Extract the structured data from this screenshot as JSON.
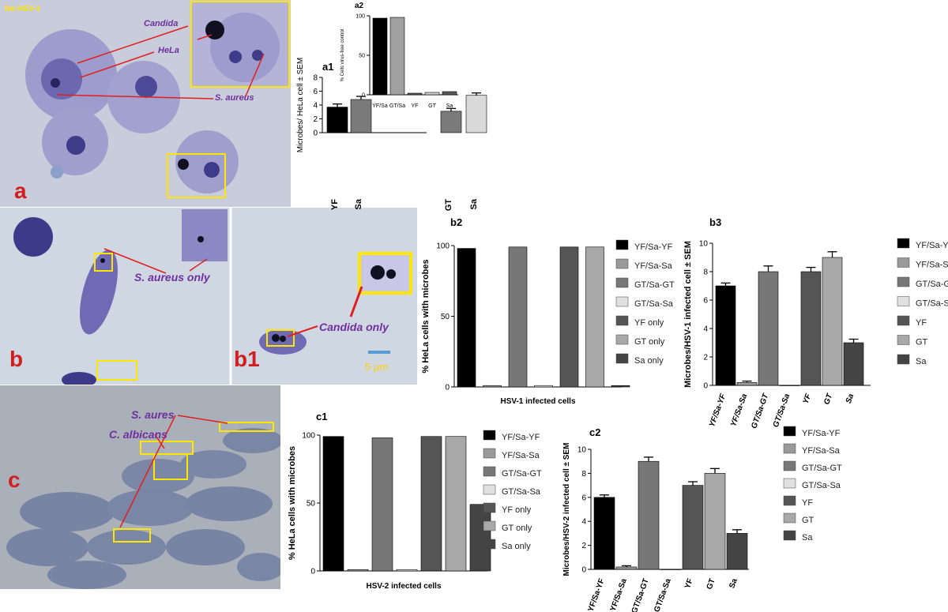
{
  "panel_labels": {
    "a": "a",
    "b": "b",
    "b1": "b1",
    "c": "c"
  },
  "micrographs": {
    "a": {
      "corner_text": "No HSV-1",
      "candida": "Candida",
      "hela": "HeLa",
      "s_aureus": "S. aureus"
    },
    "b": {
      "s_aureus_only": "S. aureus only"
    },
    "b1": {
      "candida_only": "Candida only",
      "scale": "5 μm"
    },
    "c": {
      "s_aures": "S. aures",
      "c_albicans": "C. albicans"
    }
  },
  "colors": {
    "purple_label": "#7030a0",
    "red_label": "#d11f1f",
    "yellow_box": "#ffe600",
    "arrow_red": "#e02020",
    "cell_blue": "#6e6bb4",
    "bg_a": "#c9ccdb",
    "bg_b": "#cfd7e3",
    "bg_c": "#a9b0b9"
  },
  "chart_data": [
    {
      "id": "a1",
      "type": "bar",
      "title": "a1",
      "ylabel": "Microbes/ HeLa cell ± SEM",
      "ylim": [
        0,
        8
      ],
      "yticks": [
        "0",
        "2",
        "4",
        "6",
        "8"
      ],
      "categories": [
        "YF",
        "Sa",
        "GT",
        "Sa"
      ],
      "values": [
        3.7,
        4.8,
        3.1,
        5.4
      ],
      "errors": [
        0.45,
        0.45,
        0.4,
        0.35
      ],
      "colors": [
        "#000000",
        "#7a7a7a",
        "#7a7a7a",
        "#d9d9d9"
      ]
    },
    {
      "id": "a2",
      "type": "bar",
      "title": "a2",
      "ylabel": "% Cells virus-free control",
      "ylim": [
        0,
        100
      ],
      "yticks": [
        "0",
        "50",
        "100"
      ],
      "categories": [
        "YF/Sa",
        "GT/Sa",
        "YF",
        "GT",
        "Sa"
      ],
      "values": [
        97,
        98,
        2,
        3,
        4
      ],
      "colors": [
        "#000000",
        "#a0a0a0",
        "#5a5a5a",
        "#d0d0d0",
        "#5a5a5a"
      ]
    },
    {
      "id": "b2",
      "type": "bar",
      "title": "b2",
      "ylabel": "% HeLa cells with microbes",
      "xlabel": "HSV-1 infected cells",
      "ylim": [
        0,
        100
      ],
      "yticks": [
        "0",
        "50",
        "100"
      ],
      "values": [
        98,
        1,
        99,
        1,
        99,
        99,
        1
      ],
      "legend": [
        "YF/Sa-YF",
        "YF/Sa-Sa",
        "GT/Sa-GT",
        "GT/Sa-Sa",
        "YF only",
        "GT only",
        "Sa only"
      ],
      "colors": [
        "#000000",
        "#9a9a9a",
        "#777777",
        "#e0e0e0",
        "#555555",
        "#a8a8a8",
        "#444444"
      ]
    },
    {
      "id": "b3",
      "type": "bar",
      "title": "b3",
      "ylabel": "Microbes/HSV-1 infected cell ± SEM",
      "ylim": [
        0,
        10
      ],
      "yticks": [
        "0",
        "2",
        "4",
        "6",
        "8",
        "10"
      ],
      "categories": [
        "YF/Sa-YF",
        "YF/Sa-Sa",
        "GT/Sa-GT",
        "GT/Sa-Sa",
        "YF",
        "GT",
        "Sa"
      ],
      "values": [
        7,
        0.2,
        8,
        0,
        8,
        9,
        3
      ],
      "errors": [
        0.2,
        0.1,
        0.4,
        0,
        0.3,
        0.4,
        0.25
      ],
      "legend": [
        "YF/Sa-YF",
        "YF/Sa-Sa",
        "GT/Sa-GT",
        "GT/Sa-Sa",
        "YF",
        "GT",
        "Sa"
      ],
      "colors": [
        "#000000",
        "#9a9a9a",
        "#777777",
        "#e0e0e0",
        "#555555",
        "#a8a8a8",
        "#444444"
      ]
    },
    {
      "id": "c1",
      "type": "bar",
      "title": "c1",
      "ylabel": "% HeLa cells with microbes",
      "xlabel": "HSV-2 infected cells",
      "ylim": [
        0,
        100
      ],
      "yticks": [
        "0",
        "50",
        "100"
      ],
      "values": [
        99,
        1,
        98,
        1,
        99,
        99,
        49
      ],
      "legend": [
        "YF/Sa-YF",
        "YF/Sa-Sa",
        "GT/Sa-GT",
        "GT/Sa-Sa",
        "YF only",
        "GT only",
        "Sa only"
      ],
      "colors": [
        "#000000",
        "#9a9a9a",
        "#777777",
        "#e0e0e0",
        "#555555",
        "#a8a8a8",
        "#444444"
      ]
    },
    {
      "id": "c2",
      "type": "bar",
      "title": "c2",
      "ylabel": "Microbes/HSV-2 infected cell ± SEM",
      "ylim": [
        0,
        10
      ],
      "yticks": [
        "0",
        "2",
        "4",
        "6",
        "8",
        "10"
      ],
      "categories": [
        "YF/Sa-YF",
        "YF/Sa-Sa",
        "GT/Sa-GT",
        "GT/Sa-Sa",
        "YF",
        "GT",
        "Sa"
      ],
      "values": [
        6,
        0.2,
        9,
        0,
        7,
        8,
        3
      ],
      "errors": [
        0.2,
        0.1,
        0.35,
        0,
        0.3,
        0.4,
        0.3
      ],
      "legend": [
        "YF/Sa-YF",
        "YF/Sa-Sa",
        "GT/Sa-GT",
        "GT/Sa-Sa",
        "YF",
        "GT",
        "Sa"
      ],
      "colors": [
        "#000000",
        "#9a9a9a",
        "#777777",
        "#e0e0e0",
        "#555555",
        "#a8a8a8",
        "#444444"
      ]
    }
  ]
}
